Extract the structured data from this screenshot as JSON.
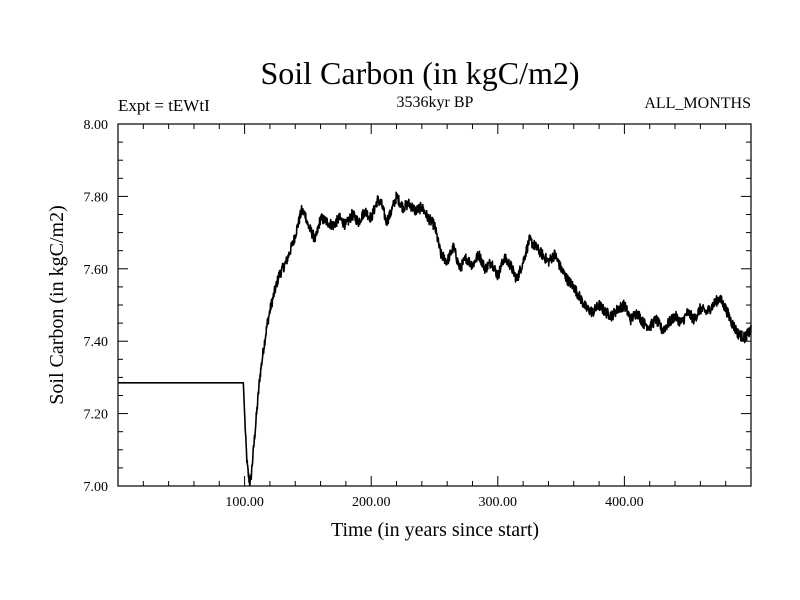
{
  "chart_data": {
    "type": "line",
    "title": "Soil Carbon (in kgC/m2)",
    "subtitle": "3536kyr BP",
    "experiment_label": "Expt = tEWtI",
    "period_label": "ALL_MONTHS",
    "xlabel": "Time (in years since start)",
    "ylabel": "Soil Carbon (in kgC/m2)",
    "xlim": [
      0,
      500
    ],
    "ylim": [
      7.0,
      8.0
    ],
    "x_ticks": [
      100,
      200,
      300,
      400
    ],
    "x_tick_labels": [
      "100.00",
      "200.00",
      "300.00",
      "400.00"
    ],
    "y_ticks": [
      7.0,
      7.2,
      7.4,
      7.6,
      7.8,
      8.0
    ],
    "y_tick_labels": [
      "7.00",
      "7.20",
      "7.40",
      "7.60",
      "7.80",
      "8.00"
    ],
    "grid": false,
    "series": [
      {
        "name": "Soil Carbon",
        "color": "#000000",
        "x": [
          0,
          99,
          100,
          101,
          102,
          103,
          104,
          105,
          106,
          108,
          110,
          112,
          115,
          118,
          121,
          124,
          127,
          130,
          133,
          136,
          139,
          142,
          145,
          148,
          150,
          153,
          156,
          160,
          165,
          170,
          175,
          180,
          185,
          190,
          195,
          200,
          205,
          208,
          212,
          215,
          220,
          225,
          230,
          235,
          240,
          245,
          250,
          255,
          260,
          265,
          270,
          275,
          280,
          285,
          290,
          295,
          300,
          305,
          310,
          315,
          320,
          325,
          330,
          335,
          340,
          345,
          350,
          355,
          360,
          365,
          370,
          375,
          380,
          385,
          390,
          395,
          400,
          405,
          410,
          415,
          420,
          425,
          430,
          435,
          440,
          445,
          450,
          455,
          460,
          465,
          470,
          475,
          480,
          485,
          490,
          495,
          500
        ],
        "values": [
          7.285,
          7.285,
          7.2,
          7.12,
          7.06,
          7.03,
          7.01,
          7.02,
          7.06,
          7.14,
          7.22,
          7.3,
          7.38,
          7.45,
          7.5,
          7.54,
          7.58,
          7.6,
          7.62,
          7.65,
          7.68,
          7.72,
          7.76,
          7.75,
          7.72,
          7.7,
          7.68,
          7.74,
          7.73,
          7.72,
          7.74,
          7.72,
          7.75,
          7.73,
          7.76,
          7.74,
          7.79,
          7.78,
          7.73,
          7.75,
          7.8,
          7.77,
          7.78,
          7.76,
          7.77,
          7.74,
          7.72,
          7.64,
          7.62,
          7.66,
          7.6,
          7.63,
          7.61,
          7.64,
          7.6,
          7.62,
          7.58,
          7.63,
          7.61,
          7.57,
          7.62,
          7.68,
          7.66,
          7.64,
          7.62,
          7.64,
          7.6,
          7.57,
          7.55,
          7.52,
          7.49,
          7.48,
          7.5,
          7.48,
          7.47,
          7.49,
          7.5,
          7.46,
          7.48,
          7.45,
          7.44,
          7.46,
          7.43,
          7.45,
          7.47,
          7.45,
          7.48,
          7.46,
          7.49,
          7.48,
          7.5,
          7.52,
          7.49,
          7.45,
          7.42,
          7.41,
          7.43
        ]
      }
    ]
  }
}
